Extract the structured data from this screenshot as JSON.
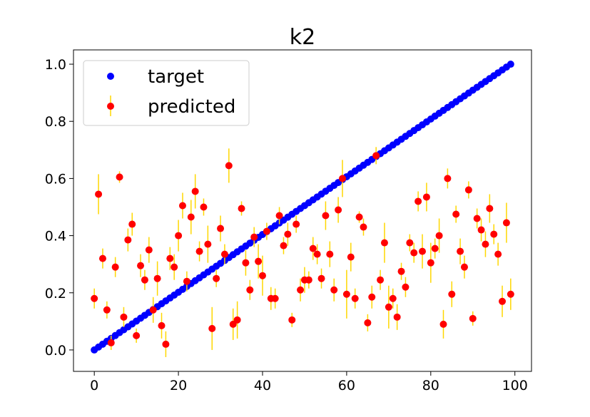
{
  "chart_data": {
    "type": "scatter",
    "title": "k2",
    "xlabel": "",
    "ylabel": "",
    "xlim": [
      -4.95,
      103.95
    ],
    "ylim": [
      -0.075,
      1.05
    ],
    "x_ticks": [
      0,
      20,
      40,
      60,
      80,
      100
    ],
    "y_ticks": [
      0.0,
      0.2,
      0.4,
      0.6,
      0.8,
      1.0
    ],
    "x_tick_labels": [
      "0",
      "20",
      "40",
      "60",
      "80",
      "100"
    ],
    "y_tick_labels": [
      "0.0",
      "0.2",
      "0.4",
      "0.6",
      "0.8",
      "1.0"
    ],
    "grid": false,
    "legend_position": "top-left",
    "colors": {
      "target": "#0000ff",
      "predicted": "#ff0000",
      "error_bar": "#ffd700"
    },
    "series": [
      {
        "name": "target",
        "marker": "circle",
        "x_range": [
          0,
          99
        ],
        "y_range": [
          0.0,
          1.0
        ],
        "count": 100
      },
      {
        "name": "predicted",
        "marker": "circle",
        "has_error_bars": true,
        "points": [
          [
            0,
            0.18,
            0.035
          ],
          [
            1,
            0.545,
            0.07
          ],
          [
            2,
            0.32,
            0.035
          ],
          [
            3,
            0.14,
            0.03
          ],
          [
            4,
            0.025,
            0.025
          ],
          [
            5,
            0.29,
            0.035
          ],
          [
            6,
            0.605,
            0.02
          ],
          [
            7,
            0.115,
            0.035
          ],
          [
            8,
            0.385,
            0.04
          ],
          [
            9,
            0.44,
            0.04
          ],
          [
            10,
            0.05,
            0.025
          ],
          [
            11,
            0.295,
            0.04
          ],
          [
            12,
            0.245,
            0.035
          ],
          [
            13,
            0.35,
            0.045
          ],
          [
            14,
            0.14,
            0.045
          ],
          [
            15,
            0.25,
            0.06
          ],
          [
            16,
            0.085,
            0.045
          ],
          [
            17,
            0.02,
            0.045
          ],
          [
            18,
            0.32,
            0.04
          ],
          [
            19,
            0.29,
            0.045
          ],
          [
            20,
            0.4,
            0.055
          ],
          [
            21,
            0.505,
            0.045
          ],
          [
            22,
            0.24,
            0.035
          ],
          [
            23,
            0.465,
            0.06
          ],
          [
            24,
            0.555,
            0.06
          ],
          [
            25,
            0.345,
            0.035
          ],
          [
            26,
            0.5,
            0.03
          ],
          [
            27,
            0.37,
            0.065
          ],
          [
            28,
            0.075,
            0.075
          ],
          [
            29,
            0.25,
            0.03
          ],
          [
            30,
            0.425,
            0.045
          ],
          [
            31,
            0.335,
            0.035
          ],
          [
            32,
            0.645,
            0.06
          ],
          [
            33,
            0.09,
            0.055
          ],
          [
            34,
            0.105,
            0.065
          ],
          [
            35,
            0.495,
            0.025
          ],
          [
            36,
            0.305,
            0.045
          ],
          [
            37,
            0.21,
            0.035
          ],
          [
            38,
            0.395,
            0.035
          ],
          [
            39,
            0.31,
            0.06
          ],
          [
            40,
            0.26,
            0.07
          ],
          [
            41,
            0.415,
            0.03
          ],
          [
            42,
            0.18,
            0.04
          ],
          [
            43,
            0.18,
            0.035
          ],
          [
            44,
            0.47,
            0.03
          ],
          [
            45,
            0.365,
            0.03
          ],
          [
            46,
            0.405,
            0.04
          ],
          [
            47,
            0.105,
            0.025
          ],
          [
            48,
            0.44,
            0.03
          ],
          [
            49,
            0.21,
            0.04
          ],
          [
            50,
            0.245,
            0.045
          ],
          [
            51,
            0.245,
            0.03
          ],
          [
            52,
            0.355,
            0.04
          ],
          [
            53,
            0.335,
            0.035
          ],
          [
            54,
            0.25,
            0.035
          ],
          [
            55,
            0.47,
            0.05
          ],
          [
            56,
            0.335,
            0.045
          ],
          [
            57,
            0.21,
            0.04
          ],
          [
            58,
            0.49,
            0.045
          ],
          [
            59,
            0.6,
            0.065
          ],
          [
            60,
            0.195,
            0.085
          ],
          [
            61,
            0.325,
            0.05
          ],
          [
            62,
            0.18,
            0.035
          ],
          [
            63,
            0.465,
            0.02
          ],
          [
            64,
            0.43,
            0.03
          ],
          [
            65,
            0.095,
            0.03
          ],
          [
            66,
            0.185,
            0.04
          ],
          [
            67,
            0.68,
            0.03
          ],
          [
            68,
            0.245,
            0.035
          ],
          [
            69,
            0.375,
            0.07
          ],
          [
            70,
            0.15,
            0.075
          ],
          [
            71,
            0.18,
            0.035
          ],
          [
            72,
            0.115,
            0.045
          ],
          [
            73,
            0.275,
            0.03
          ],
          [
            74,
            0.22,
            0.035
          ],
          [
            75,
            0.375,
            0.03
          ],
          [
            76,
            0.34,
            0.035
          ],
          [
            77,
            0.52,
            0.035
          ],
          [
            78,
            0.345,
            0.06
          ],
          [
            79,
            0.535,
            0.05
          ],
          [
            80,
            0.305,
            0.07
          ],
          [
            81,
            0.355,
            0.035
          ],
          [
            82,
            0.4,
            0.06
          ],
          [
            83,
            0.09,
            0.05
          ],
          [
            84,
            0.6,
            0.035
          ],
          [
            85,
            0.195,
            0.045
          ],
          [
            86,
            0.475,
            0.03
          ],
          [
            87,
            0.345,
            0.045
          ],
          [
            88,
            0.29,
            0.04
          ],
          [
            89,
            0.56,
            0.03
          ],
          [
            90,
            0.11,
            0.025
          ],
          [
            91,
            0.46,
            0.035
          ],
          [
            92,
            0.42,
            0.04
          ],
          [
            93,
            0.37,
            0.045
          ],
          [
            94,
            0.495,
            0.05
          ],
          [
            95,
            0.405,
            0.035
          ],
          [
            96,
            0.335,
            0.04
          ],
          [
            97,
            0.17,
            0.055
          ],
          [
            98,
            0.445,
            0.07
          ],
          [
            99,
            0.195,
            0.055
          ]
        ],
        "point_format": [
          "x",
          "y",
          "error"
        ]
      }
    ]
  }
}
